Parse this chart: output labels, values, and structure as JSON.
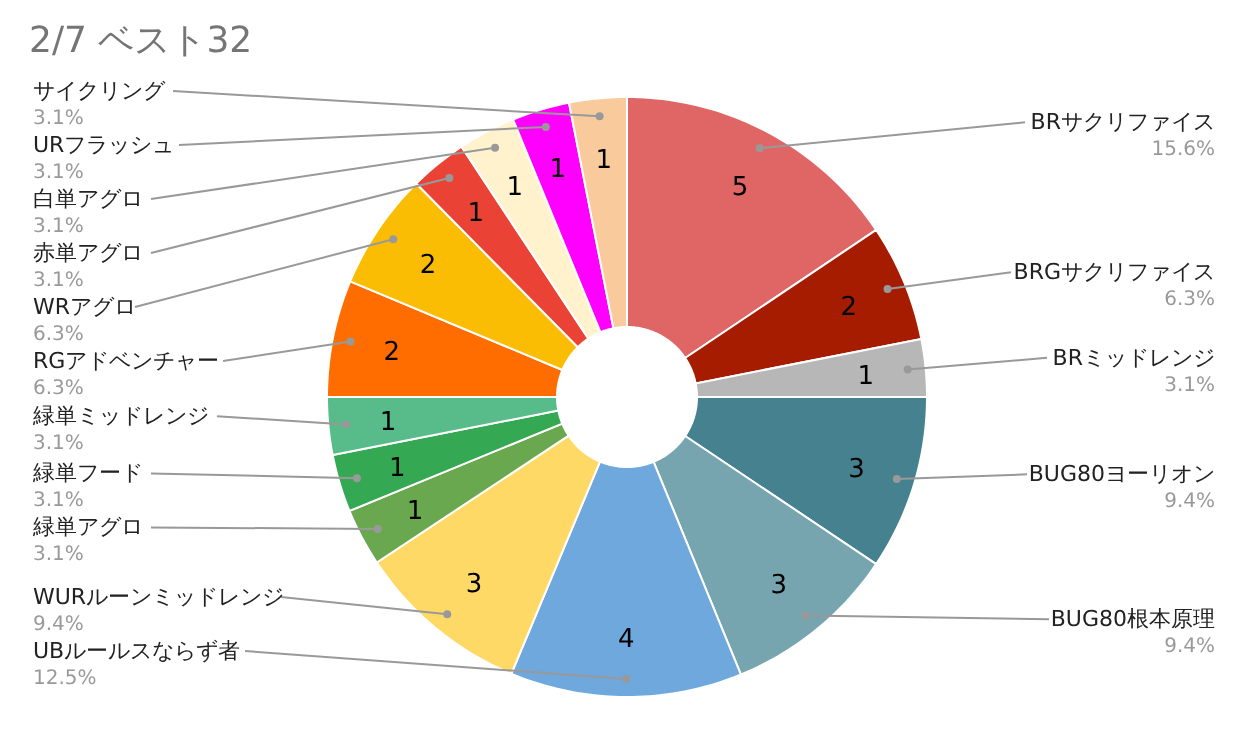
{
  "chart_data": {
    "type": "donut",
    "title": "2/7 ベスト32",
    "categories": [
      "BRサクリファイス",
      "BRGサクリファイス",
      "BRミッドレンジ",
      "BUG80ヨーリオン",
      "BUG80根本原理",
      "UBルールスならず者",
      "WURルーンミッドレンジ",
      "緑単アグロ",
      "緑単フード",
      "緑単ミッドレンジ",
      "RGアドベンチャー",
      "WRアグロ",
      "赤単アグロ",
      "白単アグロ",
      "URフラッシュ",
      "サイクリング"
    ],
    "values": [
      15.6,
      6.3,
      3.1,
      9.4,
      9.4,
      12.5,
      9.4,
      3.1,
      3.1,
      3.1,
      6.3,
      6.3,
      3.1,
      3.1,
      3.1,
      3.1
    ],
    "colors": [
      "#e06666",
      "#a61c00",
      "#b7b7b7",
      "#45818e",
      "#76a5af",
      "#6fa8dc",
      "#ffd966",
      "#6aa84f",
      "#34a853",
      "#57bb8a",
      "#ff6d01",
      "#fbbc04",
      "#ea4335",
      "#fff2cc",
      "#ff00ff",
      "#f9cb9c"
    ],
    "value_labels": [
      "15.6%",
      "6.3%",
      "3.1%",
      "9.4%",
      "9.4%",
      "12.5%",
      "9.4%",
      "3.1%",
      "3.1%",
      "3.1%",
      "6.3%",
      "6.3%",
      "3.1%",
      "3.1%",
      "3.1%",
      "3.1%"
    ],
    "annotations": [
      "5",
      "2",
      "1",
      "3",
      "3",
      "4",
      "3",
      "1",
      "1",
      "1",
      "2",
      "2",
      "1",
      "1",
      "1",
      "1"
    ]
  }
}
